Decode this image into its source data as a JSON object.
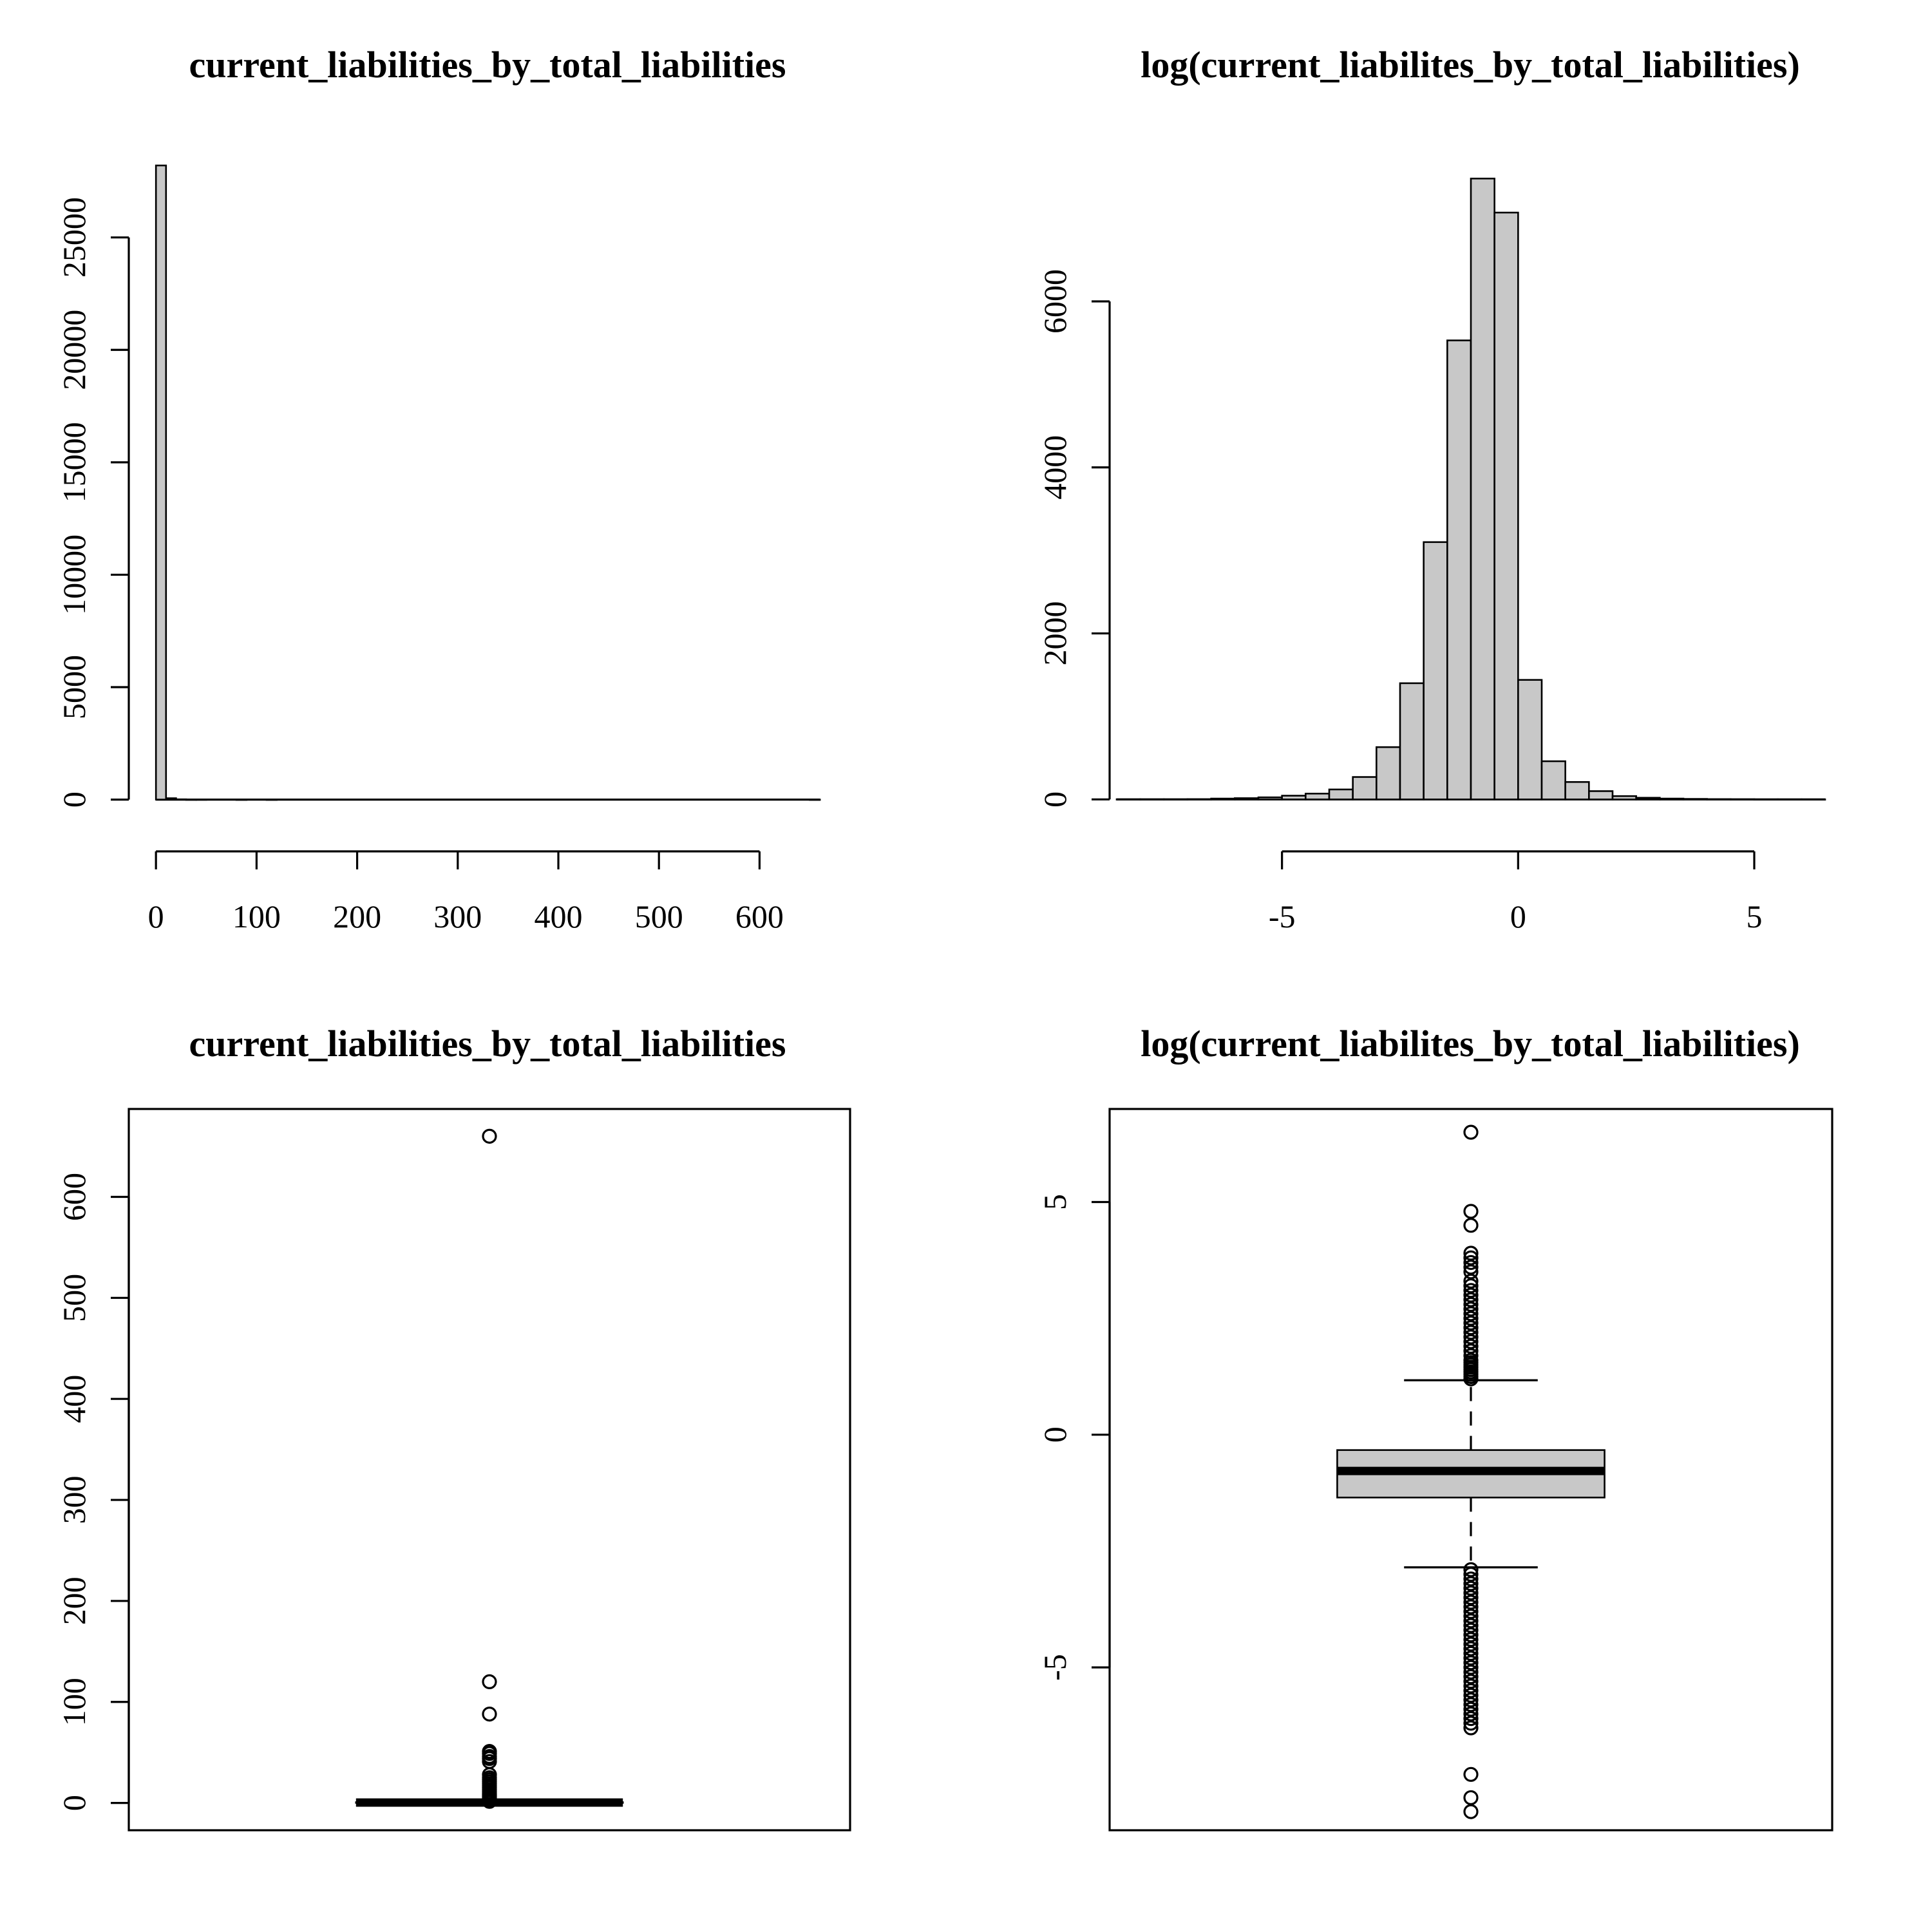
{
  "chart_data": [
    {
      "type": "histogram",
      "title": "current_liabilities_by_total_liabilities",
      "xlabel": "",
      "ylabel": "",
      "x_ticks": [
        0,
        100,
        200,
        300,
        400,
        500,
        600
      ],
      "y_ticks": [
        0,
        5000,
        10000,
        15000,
        20000,
        25000
      ],
      "bins": [
        {
          "from": 0,
          "to": 10,
          "count": 28200
        },
        {
          "from": 10,
          "to": 20,
          "count": 60
        },
        {
          "from": 20,
          "to": 30,
          "count": 12
        },
        {
          "from": 30,
          "to": 40,
          "count": 4
        },
        {
          "from": 40,
          "to": 50,
          "count": 6
        },
        {
          "from": 80,
          "to": 90,
          "count": 1
        },
        {
          "from": 110,
          "to": 120,
          "count": 1
        },
        {
          "from": 650,
          "to": 660,
          "count": 1
        }
      ]
    },
    {
      "type": "histogram",
      "title": "log(current_liabilites_by_total_liabilities)",
      "xlabel": "",
      "ylabel": "",
      "x_ticks": [
        -5,
        0,
        5
      ],
      "y_ticks": [
        0,
        2000,
        4000,
        6000
      ],
      "bins": [
        {
          "from": -8.5,
          "to": -8,
          "count": 2
        },
        {
          "from": -8,
          "to": -7.5,
          "count": 2
        },
        {
          "from": -7.5,
          "to": -7,
          "count": 2
        },
        {
          "from": -7,
          "to": -6.5,
          "count": 3
        },
        {
          "from": -6.5,
          "to": -6,
          "count": 10
        },
        {
          "from": -6,
          "to": -5.5,
          "count": 15
        },
        {
          "from": -5.5,
          "to": -5,
          "count": 25
        },
        {
          "from": -5,
          "to": -4.5,
          "count": 45
        },
        {
          "from": -4.5,
          "to": -4,
          "count": 70
        },
        {
          "from": -4,
          "to": -3.5,
          "count": 120
        },
        {
          "from": -3.5,
          "to": -3,
          "count": 270
        },
        {
          "from": -3,
          "to": -2.5,
          "count": 630
        },
        {
          "from": -2.5,
          "to": -2,
          "count": 1400
        },
        {
          "from": -2,
          "to": -1.5,
          "count": 3100
        },
        {
          "from": -1.5,
          "to": -1,
          "count": 5530
        },
        {
          "from": -1,
          "to": -0.5,
          "count": 7480
        },
        {
          "from": -0.5,
          "to": 0,
          "count": 7070
        },
        {
          "from": 0,
          "to": 0.5,
          "count": 1440
        },
        {
          "from": 0.5,
          "to": 1,
          "count": 460
        },
        {
          "from": 1,
          "to": 1.5,
          "count": 210
        },
        {
          "from": 1.5,
          "to": 2,
          "count": 100
        },
        {
          "from": 2,
          "to": 2.5,
          "count": 40
        },
        {
          "from": 2.5,
          "to": 3,
          "count": 20
        },
        {
          "from": 3,
          "to": 3.5,
          "count": 10
        },
        {
          "from": 3.5,
          "to": 4,
          "count": 6
        },
        {
          "from": 4,
          "to": 4.5,
          "count": 3
        },
        {
          "from": 4.5,
          "to": 5,
          "count": 2
        },
        {
          "from": 5,
          "to": 5.5,
          "count": 1
        },
        {
          "from": 5.5,
          "to": 6,
          "count": 1
        },
        {
          "from": 6,
          "to": 6.5,
          "count": 1
        }
      ]
    },
    {
      "type": "boxplot",
      "title": "current_liabilities_by_total_liabilities",
      "xlabel": "",
      "ylabel": "",
      "y_ticks": [
        0,
        100,
        200,
        300,
        400,
        500,
        600
      ],
      "ylim": [
        -27,
        687
      ],
      "median": 0.45,
      "q1": 0.27,
      "q3": 0.75,
      "whisker_low": 0.0,
      "whisker_high": 1.4,
      "outliers": [
        660,
        120,
        88,
        51,
        49,
        46,
        44,
        41,
        28,
        25,
        23,
        21,
        19,
        17,
        15,
        13,
        11,
        9,
        8,
        7,
        6,
        5,
        4,
        3.5,
        3,
        2.5,
        2,
        1.8,
        1.6
      ]
    },
    {
      "type": "boxplot",
      "title": "log(current_liabilites_by_total_liabilities)",
      "xlabel": "",
      "ylabel": "",
      "y_ticks": [
        -5,
        0,
        5
      ],
      "ylim": [
        -8.5,
        7.0
      ],
      "median": -0.78,
      "q1": -1.35,
      "q3": -0.33,
      "whisker_low": -2.85,
      "whisker_high": 1.17,
      "outliers": [
        6.5,
        4.8,
        4.5,
        3.9,
        3.8,
        3.7,
        3.6,
        3.5,
        3.3,
        3.2,
        3.1,
        3.0,
        2.9,
        2.8,
        2.7,
        2.6,
        2.5,
        2.4,
        2.3,
        2.2,
        2.1,
        2.0,
        1.9,
        1.8,
        1.7,
        1.6,
        1.55,
        1.5,
        1.45,
        1.4,
        1.35,
        1.3,
        1.25,
        1.2,
        -2.9,
        -3.0,
        -3.1,
        -3.2,
        -3.3,
        -3.4,
        -3.5,
        -3.6,
        -3.7,
        -3.8,
        -3.9,
        -4.0,
        -4.1,
        -4.2,
        -4.3,
        -4.4,
        -4.5,
        -4.6,
        -4.7,
        -4.8,
        -4.9,
        -5.0,
        -5.1,
        -5.2,
        -5.3,
        -5.4,
        -5.5,
        -5.6,
        -5.7,
        -5.8,
        -5.9,
        -6.0,
        -6.1,
        -6.2,
        -6.3,
        -7.3,
        -7.8,
        -8.1
      ]
    }
  ]
}
